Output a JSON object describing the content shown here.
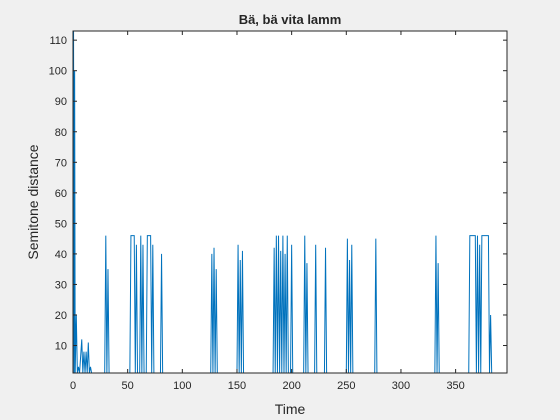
{
  "chart_data": {
    "type": "line",
    "title": "Bä, bä vita lamm",
    "xlabel": "Time",
    "ylabel": "Semitone distance",
    "xlim": [
      0,
      397
    ],
    "ylim": [
      1,
      113
    ],
    "xticks": [
      0,
      50,
      100,
      150,
      200,
      250,
      300,
      350
    ],
    "yticks": [
      10,
      20,
      30,
      40,
      50,
      60,
      70,
      80,
      90,
      100,
      110
    ],
    "grid": false,
    "series": [
      {
        "color": "#0072bd",
        "points": [
          [
            0,
            1
          ],
          [
            0.5,
            113
          ],
          [
            1,
            1
          ],
          [
            1.5,
            100
          ],
          [
            2,
            1
          ],
          [
            3,
            20
          ],
          [
            4,
            1
          ],
          [
            5,
            3
          ],
          [
            6,
            1
          ],
          [
            8,
            12
          ],
          [
            9,
            1
          ],
          [
            10,
            8
          ],
          [
            11,
            1
          ],
          [
            12,
            8
          ],
          [
            13,
            1
          ],
          [
            14,
            11
          ],
          [
            15,
            1
          ],
          [
            16,
            3
          ],
          [
            17,
            1
          ],
          [
            29,
            1
          ],
          [
            30,
            46
          ],
          [
            31,
            1
          ],
          [
            32,
            35
          ],
          [
            33,
            1
          ],
          [
            52,
            1
          ],
          [
            53,
            46
          ],
          [
            56,
            46
          ],
          [
            57,
            1
          ],
          [
            58,
            43
          ],
          [
            59,
            1
          ],
          [
            61,
            1
          ],
          [
            62,
            46
          ],
          [
            63,
            1
          ],
          [
            64,
            43
          ],
          [
            65,
            1
          ],
          [
            67,
            1
          ],
          [
            68,
            46
          ],
          [
            71,
            46
          ],
          [
            72,
            1
          ],
          [
            73,
            43
          ],
          [
            74,
            1
          ],
          [
            80,
            1
          ],
          [
            81,
            40
          ],
          [
            82,
            1
          ],
          [
            126,
            1
          ],
          [
            127,
            40
          ],
          [
            128,
            1
          ],
          [
            129,
            42
          ],
          [
            130,
            1
          ],
          [
            131,
            35
          ],
          [
            132,
            1
          ],
          [
            150,
            1
          ],
          [
            151,
            43
          ],
          [
            152,
            1
          ],
          [
            153,
            38
          ],
          [
            154,
            1
          ],
          [
            155,
            41
          ],
          [
            156,
            1
          ],
          [
            183,
            1
          ],
          [
            184,
            42
          ],
          [
            185,
            1
          ],
          [
            186,
            46
          ],
          [
            187,
            1
          ],
          [
            188,
            46
          ],
          [
            189,
            1
          ],
          [
            190,
            41
          ],
          [
            191,
            1
          ],
          [
            192,
            46
          ],
          [
            193,
            1
          ],
          [
            194,
            40
          ],
          [
            195,
            1
          ],
          [
            196,
            46
          ],
          [
            197,
            1
          ],
          [
            199,
            1
          ],
          [
            200,
            43
          ],
          [
            201,
            1
          ],
          [
            211,
            1
          ],
          [
            212,
            46
          ],
          [
            213,
            1
          ],
          [
            214,
            37
          ],
          [
            215,
            1
          ],
          [
            221,
            1
          ],
          [
            222,
            43
          ],
          [
            223,
            1
          ],
          [
            230,
            1
          ],
          [
            231,
            42
          ],
          [
            232,
            1
          ],
          [
            250,
            1
          ],
          [
            251,
            45
          ],
          [
            252,
            1
          ],
          [
            253,
            38
          ],
          [
            254,
            1
          ],
          [
            255,
            43
          ],
          [
            256,
            1
          ],
          [
            276,
            1
          ],
          [
            277,
            45
          ],
          [
            278,
            1
          ],
          [
            331,
            1
          ],
          [
            332,
            46
          ],
          [
            333,
            1
          ],
          [
            334,
            37
          ],
          [
            335,
            1
          ],
          [
            362,
            1
          ],
          [
            363,
            46
          ],
          [
            368,
            46
          ],
          [
            369,
            1
          ],
          [
            370,
            46
          ],
          [
            371,
            1
          ],
          [
            372,
            43
          ],
          [
            373,
            1
          ],
          [
            374,
            46
          ],
          [
            380,
            46
          ],
          [
            381,
            1
          ],
          [
            382,
            20
          ],
          [
            383,
            1
          ]
        ]
      }
    ]
  }
}
